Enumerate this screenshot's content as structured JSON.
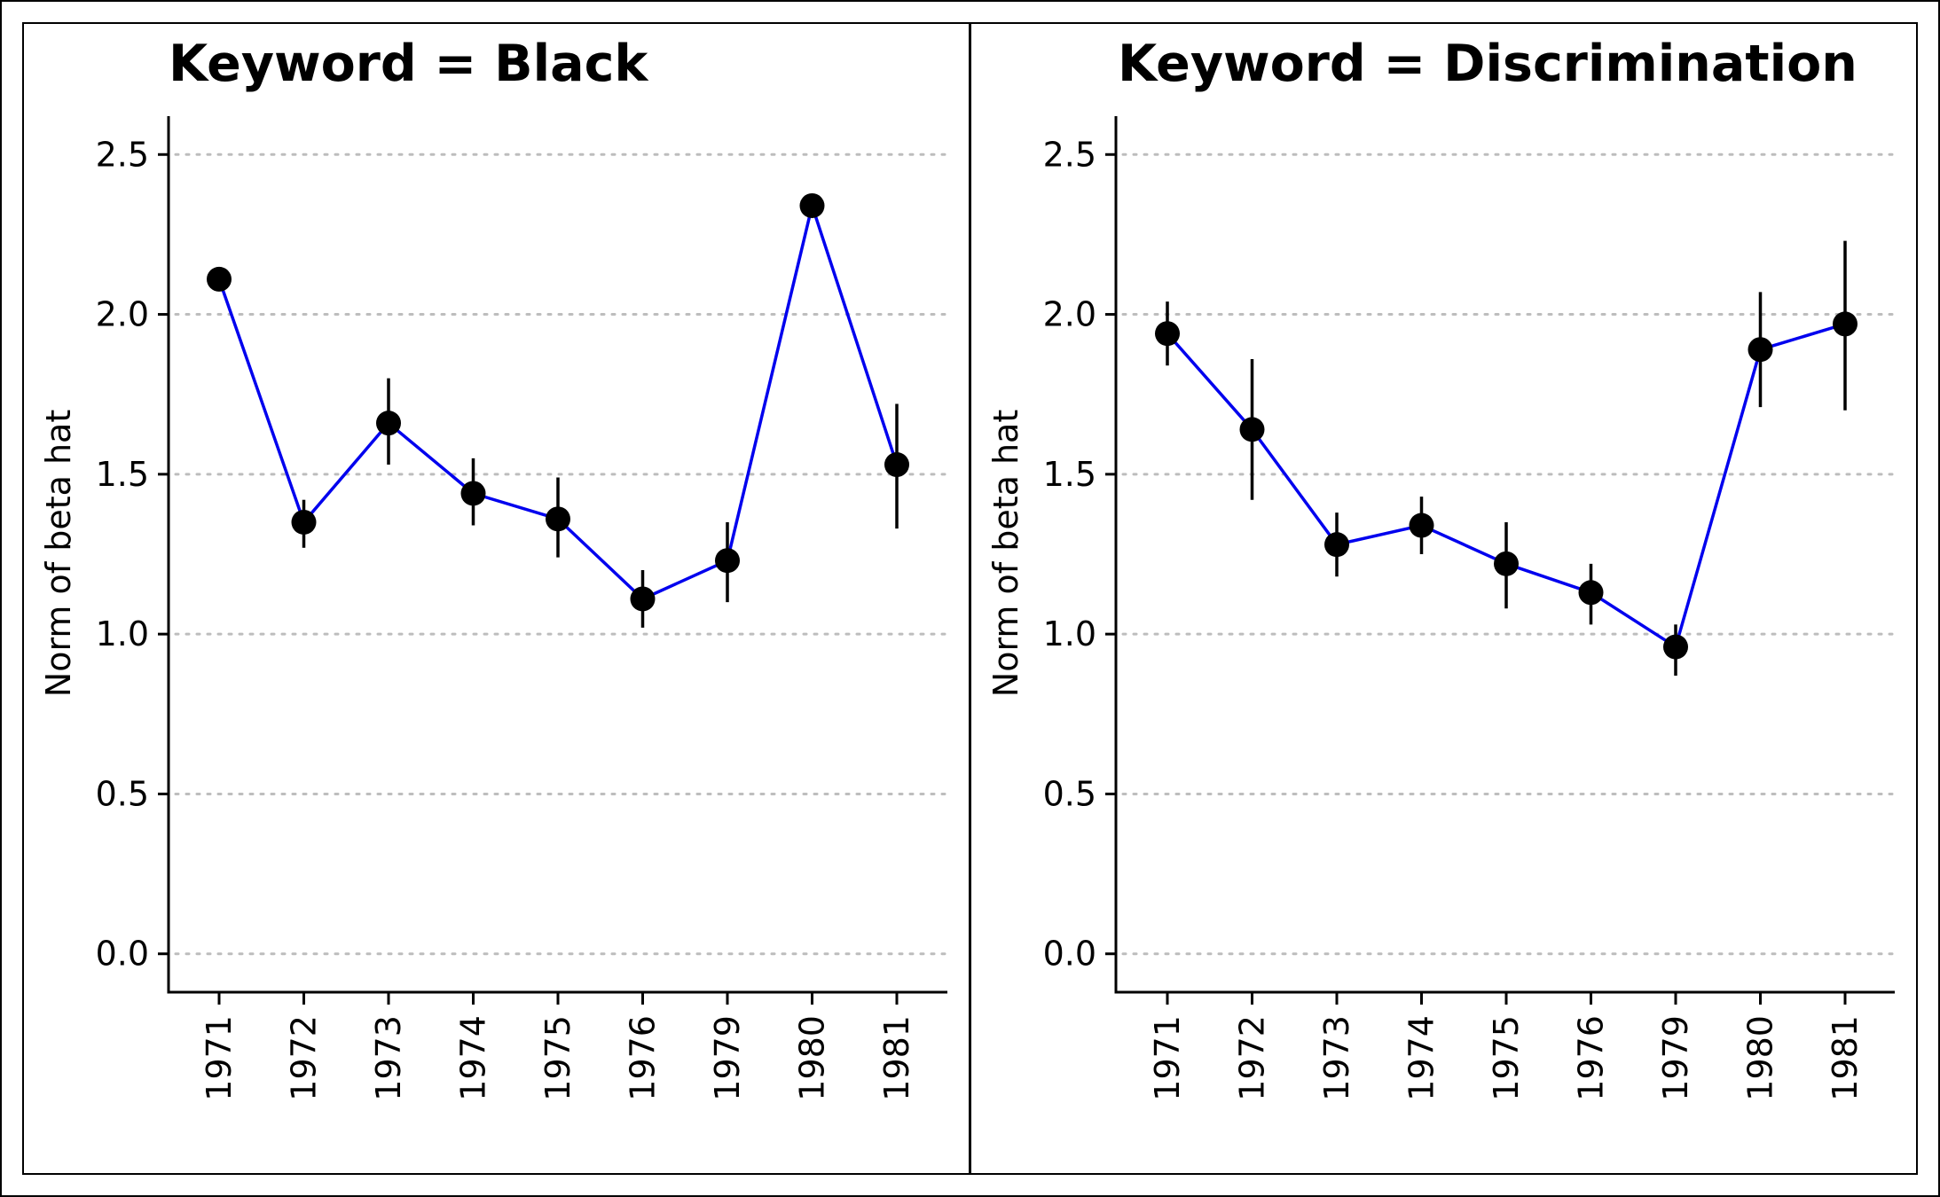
{
  "chart_data": [
    {
      "type": "line",
      "title": "Keyword = Black",
      "xlabel": "",
      "ylabel": "Norm of beta hat",
      "categories": [
        "1971",
        "1972",
        "1973",
        "1974",
        "1975",
        "1976",
        "1979",
        "1980",
        "1981"
      ],
      "values": [
        2.11,
        1.35,
        1.66,
        1.44,
        1.36,
        1.11,
        1.23,
        2.34,
        1.53
      ],
      "error_low": [
        2.11,
        1.27,
        1.53,
        1.34,
        1.24,
        1.02,
        1.1,
        2.34,
        1.33
      ],
      "error_high": [
        2.11,
        1.42,
        1.8,
        1.55,
        1.49,
        1.2,
        1.35,
        2.34,
        1.72
      ],
      "yticks": [
        0.0,
        0.5,
        1.0,
        1.5,
        2.0,
        2.5
      ],
      "ytick_labels": [
        "0.0",
        "0.5",
        "1.0",
        "1.5",
        "2.0",
        "2.5"
      ],
      "ylim": [
        -0.12,
        2.62
      ],
      "grid": "horizontal dotted",
      "line_color": "#0000ee",
      "marker_color": "#000000"
    },
    {
      "type": "line",
      "title": "Keyword = Discrimination",
      "xlabel": "",
      "ylabel": "Norm of beta hat",
      "categories": [
        "1971",
        "1972",
        "1973",
        "1974",
        "1975",
        "1976",
        "1979",
        "1980",
        "1981"
      ],
      "values": [
        1.94,
        1.64,
        1.28,
        1.34,
        1.22,
        1.13,
        0.96,
        1.89,
        1.97
      ],
      "error_low": [
        1.84,
        1.42,
        1.18,
        1.25,
        1.08,
        1.03,
        0.87,
        1.71,
        1.7
      ],
      "error_high": [
        2.04,
        1.86,
        1.38,
        1.43,
        1.35,
        1.22,
        1.03,
        2.07,
        2.23
      ],
      "yticks": [
        0.0,
        0.5,
        1.0,
        1.5,
        2.0,
        2.5
      ],
      "ytick_labels": [
        "0.0",
        "0.5",
        "1.0",
        "1.5",
        "2.0",
        "2.5"
      ],
      "ylim": [
        -0.12,
        2.62
      ],
      "grid": "horizontal dotted",
      "line_color": "#0000ee",
      "marker_color": "#000000"
    }
  ]
}
